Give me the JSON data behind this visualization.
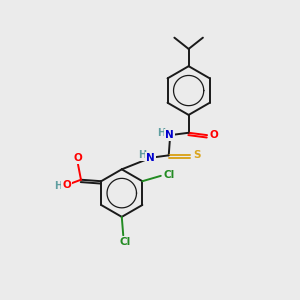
{
  "bg_color": "#ebebeb",
  "atom_colors": {
    "C": "#000000",
    "H": "#5f9ea0",
    "N": "#0000cd",
    "O": "#ff0000",
    "S": "#daa520",
    "Cl": "#228b22"
  },
  "bond_color": "#1a1a1a",
  "bond_width": 1.4,
  "fig_width": 3.0,
  "fig_height": 3.0,
  "dpi": 100
}
